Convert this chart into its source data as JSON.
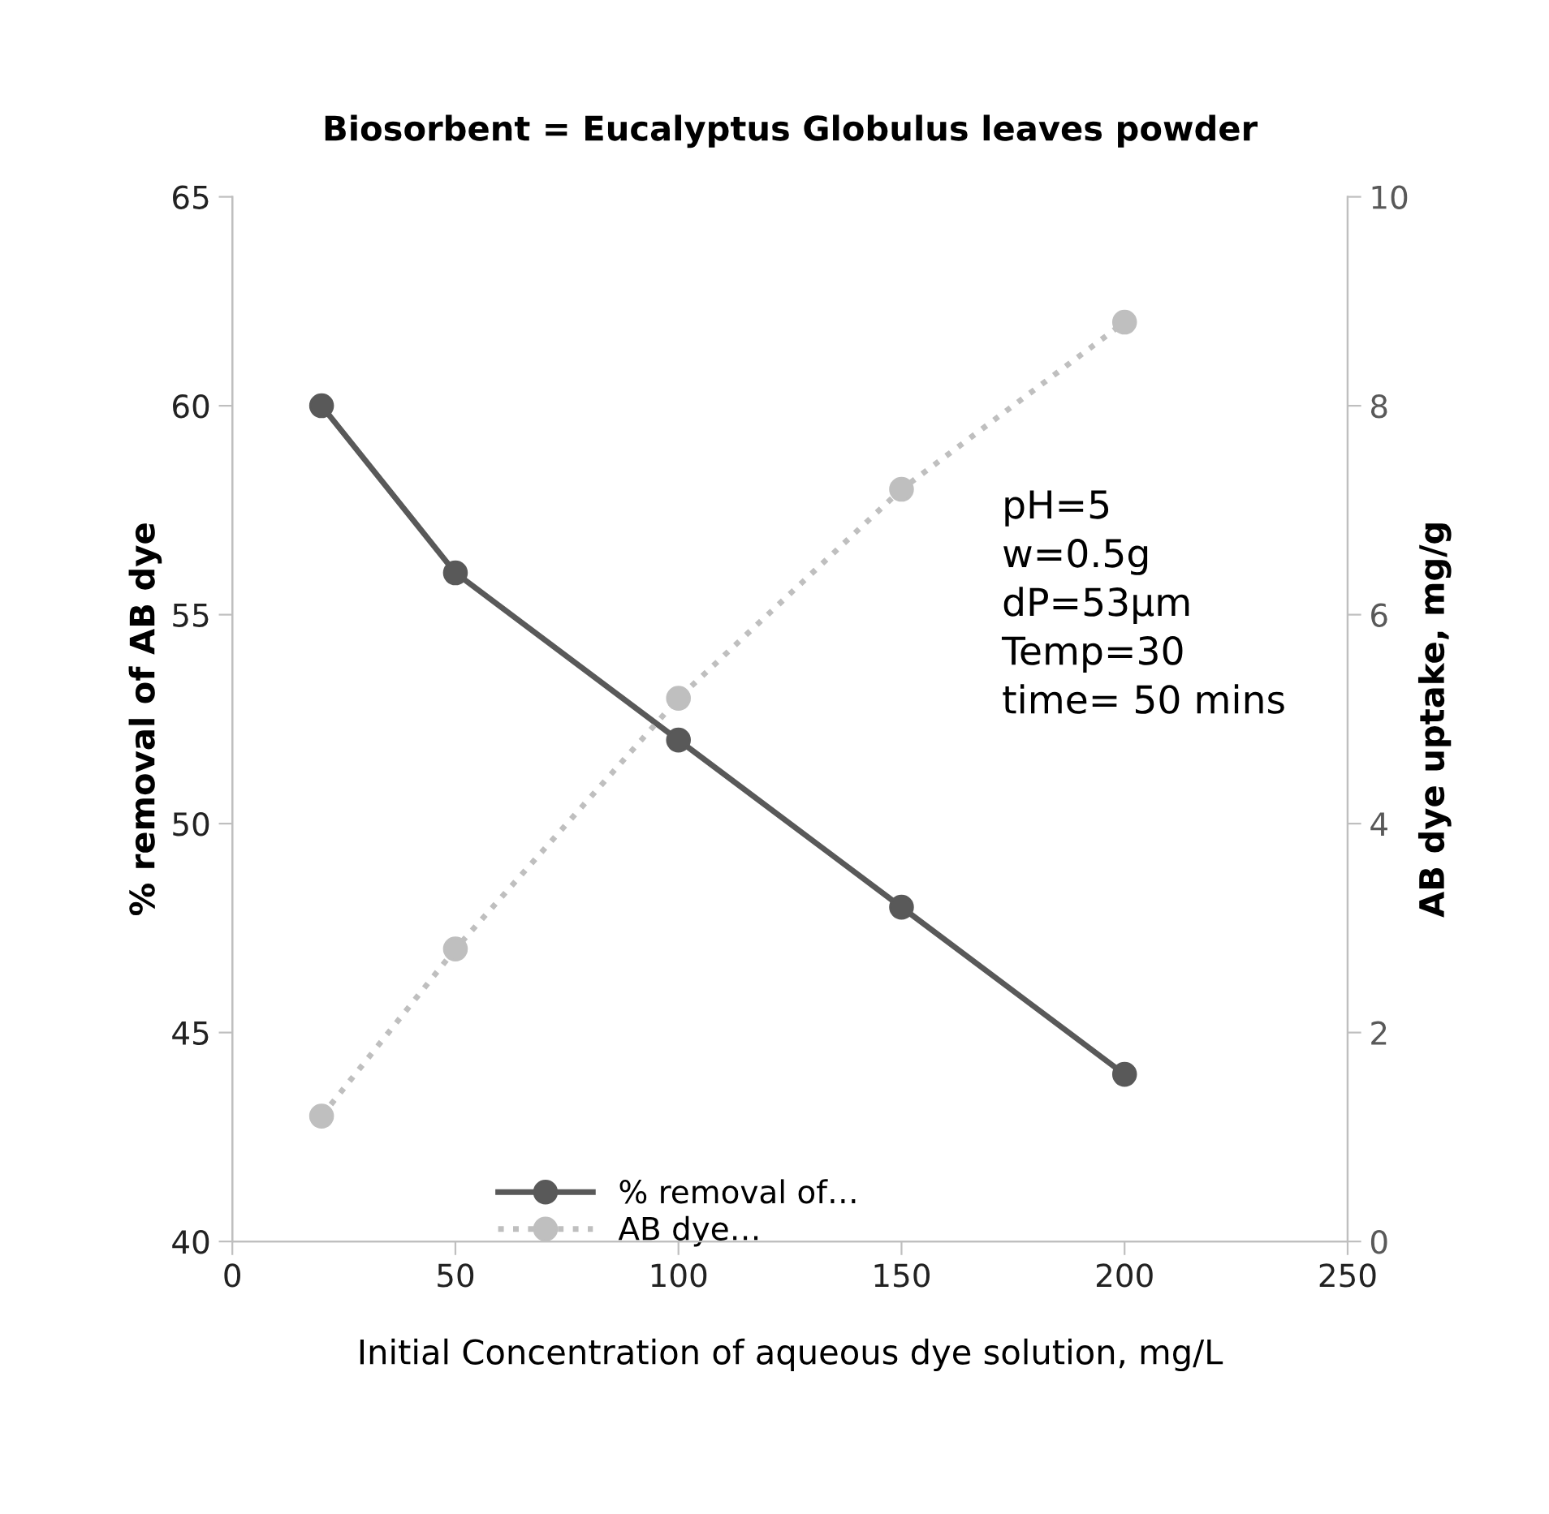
{
  "chart_data": {
    "type": "line",
    "title": "Biosorbent = Eucalyptus Globulus leaves powder",
    "xlabel": "Initial Concentration of aqueous dye solution, mg/L",
    "ylabel": "% removal of AB dye",
    "y2label": "AB dye uptake, mg/g",
    "x": [
      20,
      50,
      100,
      150,
      200
    ],
    "series": [
      {
        "name": "% removal of…",
        "color": "#595959",
        "values": [
          60,
          56,
          52,
          48,
          44
        ],
        "line_style": "solid",
        "marker": "circle"
      },
      {
        "name": "AB dye…",
        "color": "#bfbfbf",
        "values": [
          1.2,
          2.8,
          5.2,
          7.2,
          8.8
        ],
        "axis": "y2",
        "line_style": "dotted",
        "marker": "circle"
      }
    ],
    "xlim": [
      0,
      250
    ],
    "xticks": [
      0,
      50,
      100,
      150,
      200,
      250
    ],
    "ylim": [
      40,
      65
    ],
    "yticks": [
      40,
      45,
      50,
      55,
      60,
      65
    ],
    "y2lim": [
      0,
      10
    ],
    "y2ticks": [
      0,
      2,
      4,
      6,
      8,
      10
    ],
    "annotations": [
      "pH=5\nw=0.5g\ndP=53µm\nTemp=30\ntime= 50 mins"
    ],
    "legend": "bottom",
    "grid": false
  }
}
